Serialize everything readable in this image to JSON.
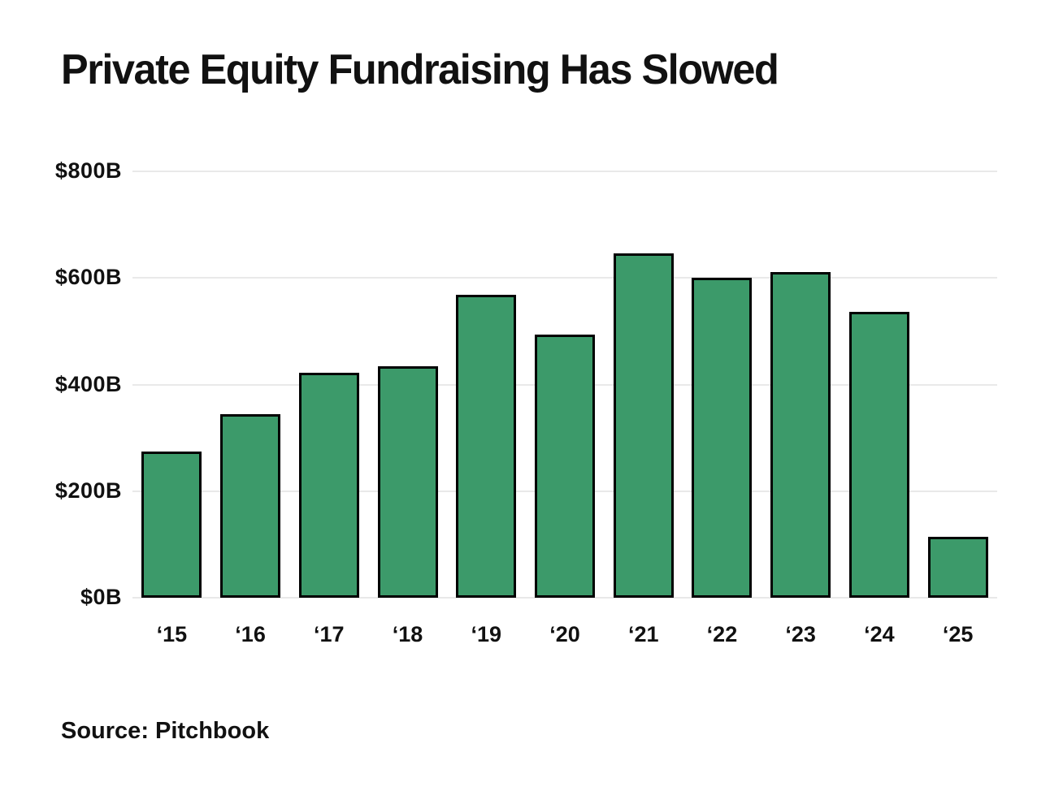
{
  "title": "Private Equity Fundraising Has Slowed",
  "source": "Source: Pitchbook",
  "colors": {
    "background": "#ffffff",
    "bar_fill": "#3C9A6A",
    "bar_border": "#000000",
    "gridline": "#e9e9e9",
    "text": "#111111"
  },
  "chart_data": {
    "type": "bar",
    "title": "Private Equity Fundraising Has Slowed",
    "source": "Source: Pitchbook",
    "categories": [
      "‘15",
      "‘16",
      "‘17",
      "‘18",
      "‘19",
      "‘20",
      "‘21",
      "‘22",
      "‘23",
      "‘24",
      "‘25"
    ],
    "values": [
      274,
      345,
      422,
      435,
      569,
      493,
      646,
      601,
      611,
      536,
      114
    ],
    "units": "billions USD",
    "xlabel": "",
    "ylabel": "",
    "ylim": [
      0,
      800
    ],
    "yticks": [
      {
        "value": 0,
        "label": "$0B"
      },
      {
        "value": 200,
        "label": "$200B"
      },
      {
        "value": 400,
        "label": "$400B"
      },
      {
        "value": 600,
        "label": "$600B"
      },
      {
        "value": 800,
        "label": "$800B"
      }
    ],
    "grid": true,
    "legend": false
  }
}
